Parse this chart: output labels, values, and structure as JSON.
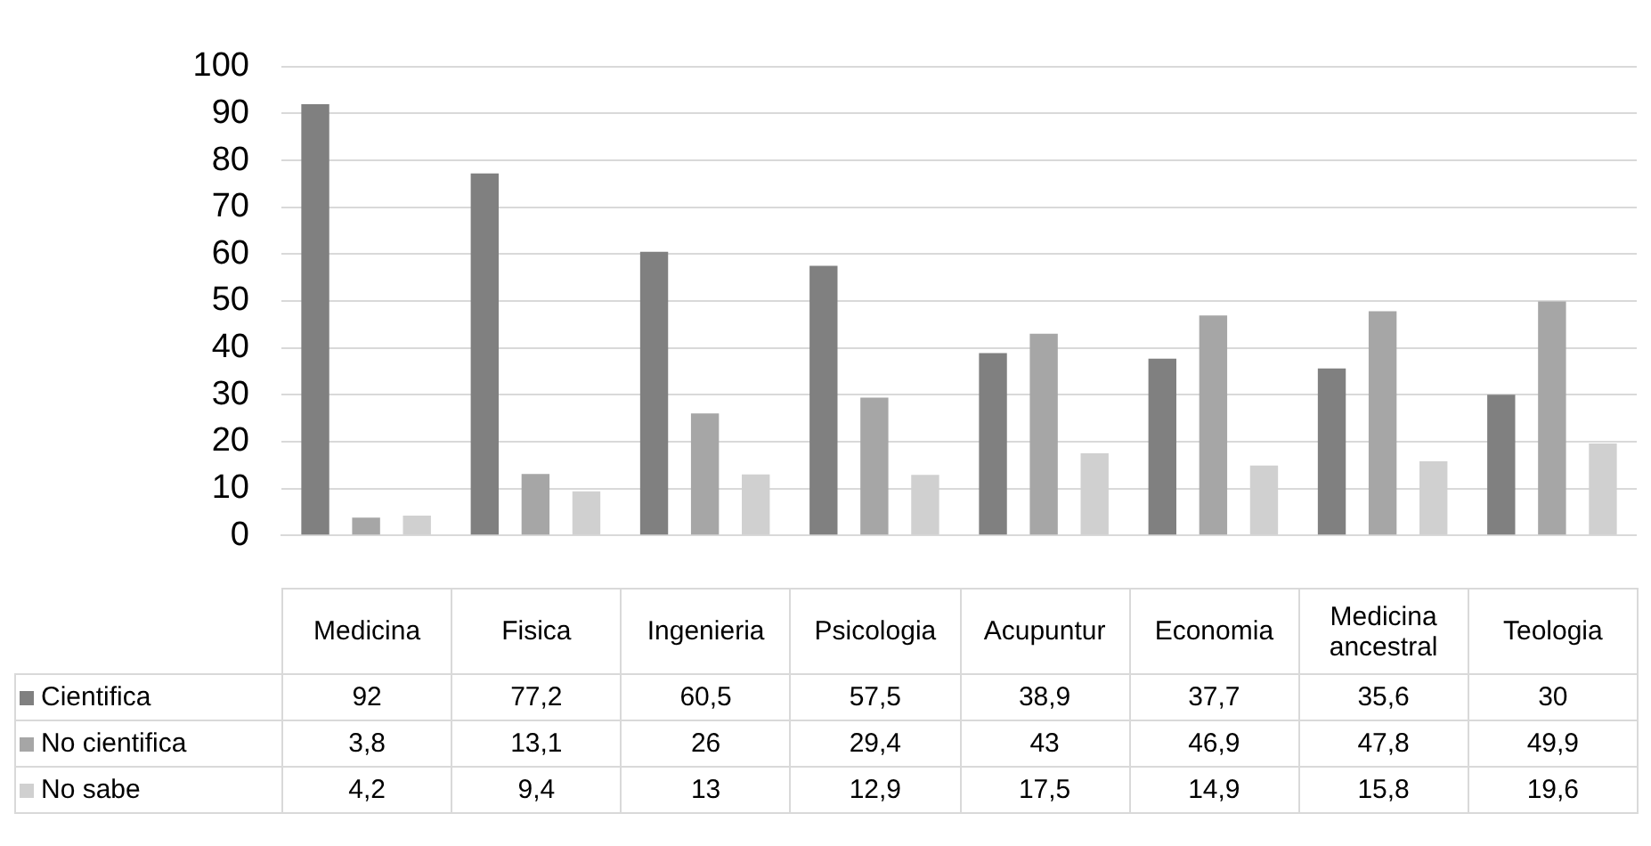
{
  "chart_data": {
    "type": "bar",
    "categories": [
      "Medicina",
      "Fisica",
      "Ingenieria",
      "Psicologia",
      "Acupuntur",
      "Economia",
      "Medicina ancestral",
      "Teologia"
    ],
    "series": [
      {
        "name": "Cientifica",
        "color": "#808080",
        "values": [
          92,
          77.2,
          60.5,
          57.5,
          38.9,
          37.7,
          35.6,
          30
        ],
        "value_labels": [
          "92",
          "77,2",
          "60,5",
          "57,5",
          "38,9",
          "37,7",
          "35,6",
          "30"
        ]
      },
      {
        "name": "No cientifica",
        "color": "#a6a6a6",
        "values": [
          3.8,
          13.1,
          26,
          29.4,
          43,
          46.9,
          47.8,
          49.9
        ],
        "value_labels": [
          "3,8",
          "13,1",
          "26",
          "29,4",
          "43",
          "46,9",
          "47,8",
          "49,9"
        ]
      },
      {
        "name": "No sabe",
        "color": "#d0d0d0",
        "values": [
          4.2,
          9.4,
          13,
          12.9,
          17.5,
          14.9,
          15.8,
          19.6
        ],
        "value_labels": [
          "4,2",
          "9,4",
          "13",
          "12,9",
          "17,5",
          "14,9",
          "15,8",
          "19,6"
        ]
      }
    ],
    "ylim": [
      0,
      100
    ],
    "yticks": [
      0,
      10,
      20,
      30,
      40,
      50,
      60,
      70,
      80,
      90,
      100
    ],
    "grid": "y",
    "legend": "bottom"
  }
}
